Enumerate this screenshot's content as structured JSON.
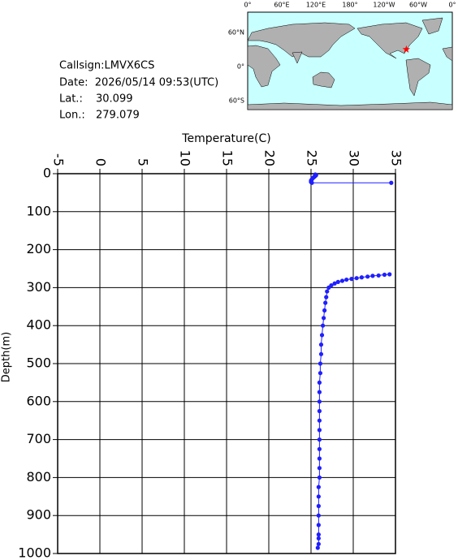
{
  "header": {
    "callsign": "Callsign:LMVX6CS",
    "date": "Date:  2026/05/14 09:53(UTC)",
    "lat_label": "Lat.:",
    "lat": 30.099,
    "lon_label": "Lon.:",
    "lon": 279.079
  },
  "map": {
    "lon_labels": [
      "0°",
      "60°E",
      "120°E",
      "180°",
      "120°W",
      "60°W",
      "0°"
    ],
    "lat_labels": [
      "60°N",
      "0°",
      "60°S"
    ]
  },
  "chart_data": {
    "type": "profile",
    "x_label": "Temperature(C)",
    "y_label": "Depth(m)",
    "xlim": [
      -5,
      35
    ],
    "xticks": [
      -5,
      0,
      5,
      10,
      15,
      20,
      25,
      30,
      35
    ],
    "ylim": [
      0,
      1000
    ],
    "yticks": [
      0,
      100,
      200,
      300,
      400,
      500,
      600,
      700,
      800,
      900,
      1000
    ],
    "invert_y": true,
    "grid": true,
    "series": [
      {
        "color": "#1f1fff",
        "x": [
          25.5,
          25.6,
          25.5,
          25.4,
          25.3,
          25.2,
          25.1,
          25.0,
          25.0,
          25.0,
          25.1,
          34.5,
          null,
          34.3,
          33.7,
          33.0,
          32.3,
          31.7,
          31.0,
          30.4,
          29.8,
          29.2,
          28.7,
          28.2,
          27.8,
          27.4,
          27.1,
          26.9,
          26.8,
          26.7,
          26.6,
          26.5,
          26.4,
          26.3,
          26.2,
          26.2,
          26.1,
          26.1,
          26.0,
          26.0,
          26.0,
          26.0,
          26.0,
          26.0,
          26.0,
          26.0,
          26.0,
          26.0,
          26.0,
          25.9,
          25.9,
          25.9,
          25.9,
          25.9,
          25.9,
          25.9,
          25.9,
          25.8
        ],
        "values": [
          2,
          4,
          6,
          8,
          10,
          12,
          15,
          18,
          20,
          22,
          24,
          24,
          null,
          265,
          266,
          268,
          269,
          271,
          273,
          275,
          277,
          279,
          282,
          285,
          289,
          294,
          300,
          310,
          325,
          340,
          360,
          380,
          400,
          425,
          450,
          475,
          500,
          525,
          550,
          575,
          600,
          625,
          650,
          675,
          700,
          725,
          750,
          775,
          800,
          825,
          850,
          875,
          900,
          925,
          950,
          960,
          975,
          985
        ]
      }
    ]
  }
}
